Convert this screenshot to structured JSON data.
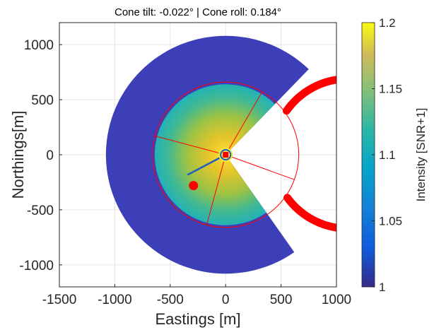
{
  "chart_data": {
    "type": "heatmap",
    "title": "Cone tilt: -0.022° | Cone roll: 0.184°",
    "xlabel": "Eastings [m]",
    "ylabel": "Northings[m]",
    "xlim": [
      -1500,
      1000
    ],
    "ylim": [
      -1200,
      1200
    ],
    "x_ticks": [
      -1500,
      -1000,
      -500,
      0,
      500,
      1000
    ],
    "x_tick_labels": [
      "-1500",
      "-1000",
      "-500",
      "0",
      "500",
      "1000"
    ],
    "y_ticks": [
      1000,
      500,
      0,
      -500,
      -1000
    ],
    "y_tick_labels": [
      "1000",
      "500",
      "0",
      "-500",
      "-1000"
    ],
    "grid": true,
    "colorbar": {
      "label": "Intensity [SNR+1]",
      "range": [
        1,
        1.2
      ],
      "ticks": [
        1.2,
        1.15,
        1.1,
        1.05,
        1
      ],
      "tick_labels": [
        "1.2",
        "1.15",
        "1.1",
        "1.05",
        "1"
      ],
      "colormap": "parula"
    },
    "sector": {
      "outer_radius": 1080,
      "inner_radius": 640,
      "gap_from_deg": -55,
      "gap_to_deg": 46,
      "background_color": "#3d3fb8",
      "center_intensity": 1.18,
      "edge_intensity": 1.1
    },
    "overlay": {
      "color": "#ff0000",
      "arc_radius": 660,
      "ring_radius": 680,
      "ring_angle_from_deg": 36,
      "ring_angle_to_deg": 325,
      "diagonal_line_angle_deg": 208,
      "diagonal_line_length": 390,
      "blob": {
        "x": -290,
        "y": -280
      },
      "center_marker": {
        "x": 0,
        "y": 0
      },
      "fan_lines": [
        {
          "angle_deg": 60,
          "length": 660
        },
        {
          "angle_deg": 165,
          "length": 670
        },
        {
          "angle_deg": 255,
          "length": 660
        },
        {
          "angle_deg": -20,
          "length": 660
        }
      ]
    }
  }
}
